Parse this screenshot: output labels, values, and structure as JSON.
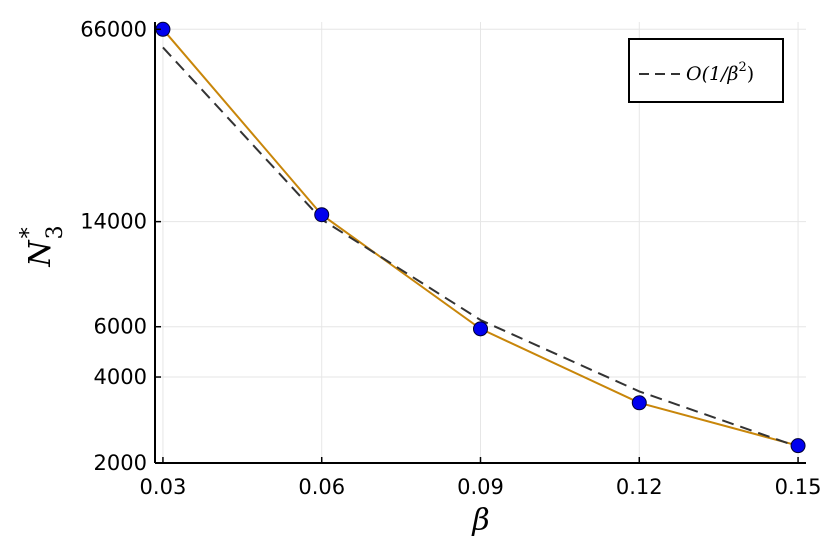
{
  "chart_data": {
    "type": "line",
    "x": [
      0.03,
      0.06,
      0.09,
      0.12,
      0.15
    ],
    "xticks": [
      "0.03",
      "0.06",
      "0.09",
      "0.12",
      "0.15"
    ],
    "xlabel": "β",
    "ylabel": "N*₃",
    "ylabel_base": "N",
    "ylabel_sup": "*",
    "ylabel_sub": "3",
    "yscale": "log",
    "yticks": [
      {
        "value": 2000,
        "label": "2000"
      },
      {
        "value": 4000,
        "label": "4000"
      },
      {
        "value": 6000,
        "label": "6000"
      },
      {
        "value": 14000,
        "label": "14000"
      },
      {
        "value": 66000,
        "label": "66000"
      }
    ],
    "xlim": [
      0.0285,
      0.1515
    ],
    "ylim": [
      2000,
      70000
    ],
    "grid": true,
    "legend_position": "top-right",
    "series": [
      {
        "values": [
          66000,
          14800,
          5900,
          3250,
          2300
        ],
        "color": "#c8860a",
        "marker": "circle",
        "marker_color": "#0000ee",
        "line_style": "solid"
      },
      {
        "name": "O(1/β²)",
        "name_base": "O(1/β",
        "name_sup": "2",
        "name_tail": ")",
        "values": [
          57000,
          14250,
          6333,
          3562,
          2280
        ],
        "color": "#333333",
        "line_style": "dashed"
      }
    ]
  }
}
